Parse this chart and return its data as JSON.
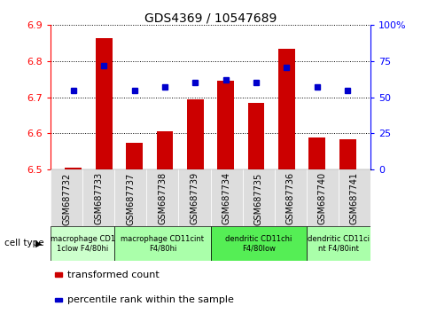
{
  "title": "GDS4369 / 10547689",
  "samples": [
    "GSM687732",
    "GSM687733",
    "GSM687737",
    "GSM687738",
    "GSM687739",
    "GSM687734",
    "GSM687735",
    "GSM687736",
    "GSM687740",
    "GSM687741"
  ],
  "transformed_counts": [
    6.505,
    6.865,
    6.575,
    6.605,
    6.695,
    6.745,
    6.685,
    6.835,
    6.59,
    6.585
  ],
  "percentile_ranks": [
    55,
    72,
    55,
    57,
    60,
    62,
    60,
    71,
    57,
    55
  ],
  "ylim_left": [
    6.5,
    6.9
  ],
  "ylim_right": [
    0,
    100
  ],
  "yticks_left": [
    6.5,
    6.6,
    6.7,
    6.8,
    6.9
  ],
  "yticks_right": [
    0,
    25,
    50,
    75,
    100
  ],
  "bar_color": "#cc0000",
  "dot_color": "#0000cc",
  "cell_types": [
    {
      "label": "macrophage CD1\n1clow F4/80hi",
      "start": 0,
      "end": 2,
      "color": "#ccffcc"
    },
    {
      "label": "macrophage CD11cint\nF4/80hi",
      "start": 2,
      "end": 5,
      "color": "#aaffaa"
    },
    {
      "label": "dendritic CD11chi\nF4/80low",
      "start": 5,
      "end": 8,
      "color": "#55ee55"
    },
    {
      "label": "dendritic CD11ci\nnt F4/80int",
      "start": 8,
      "end": 10,
      "color": "#aaffaa"
    }
  ],
  "legend_bar_label": "transformed count",
  "legend_dot_label": "percentile rank within the sample",
  "cell_type_label": "cell type",
  "xticklabel_bg": "#dddddd",
  "background_color": "#ffffff"
}
